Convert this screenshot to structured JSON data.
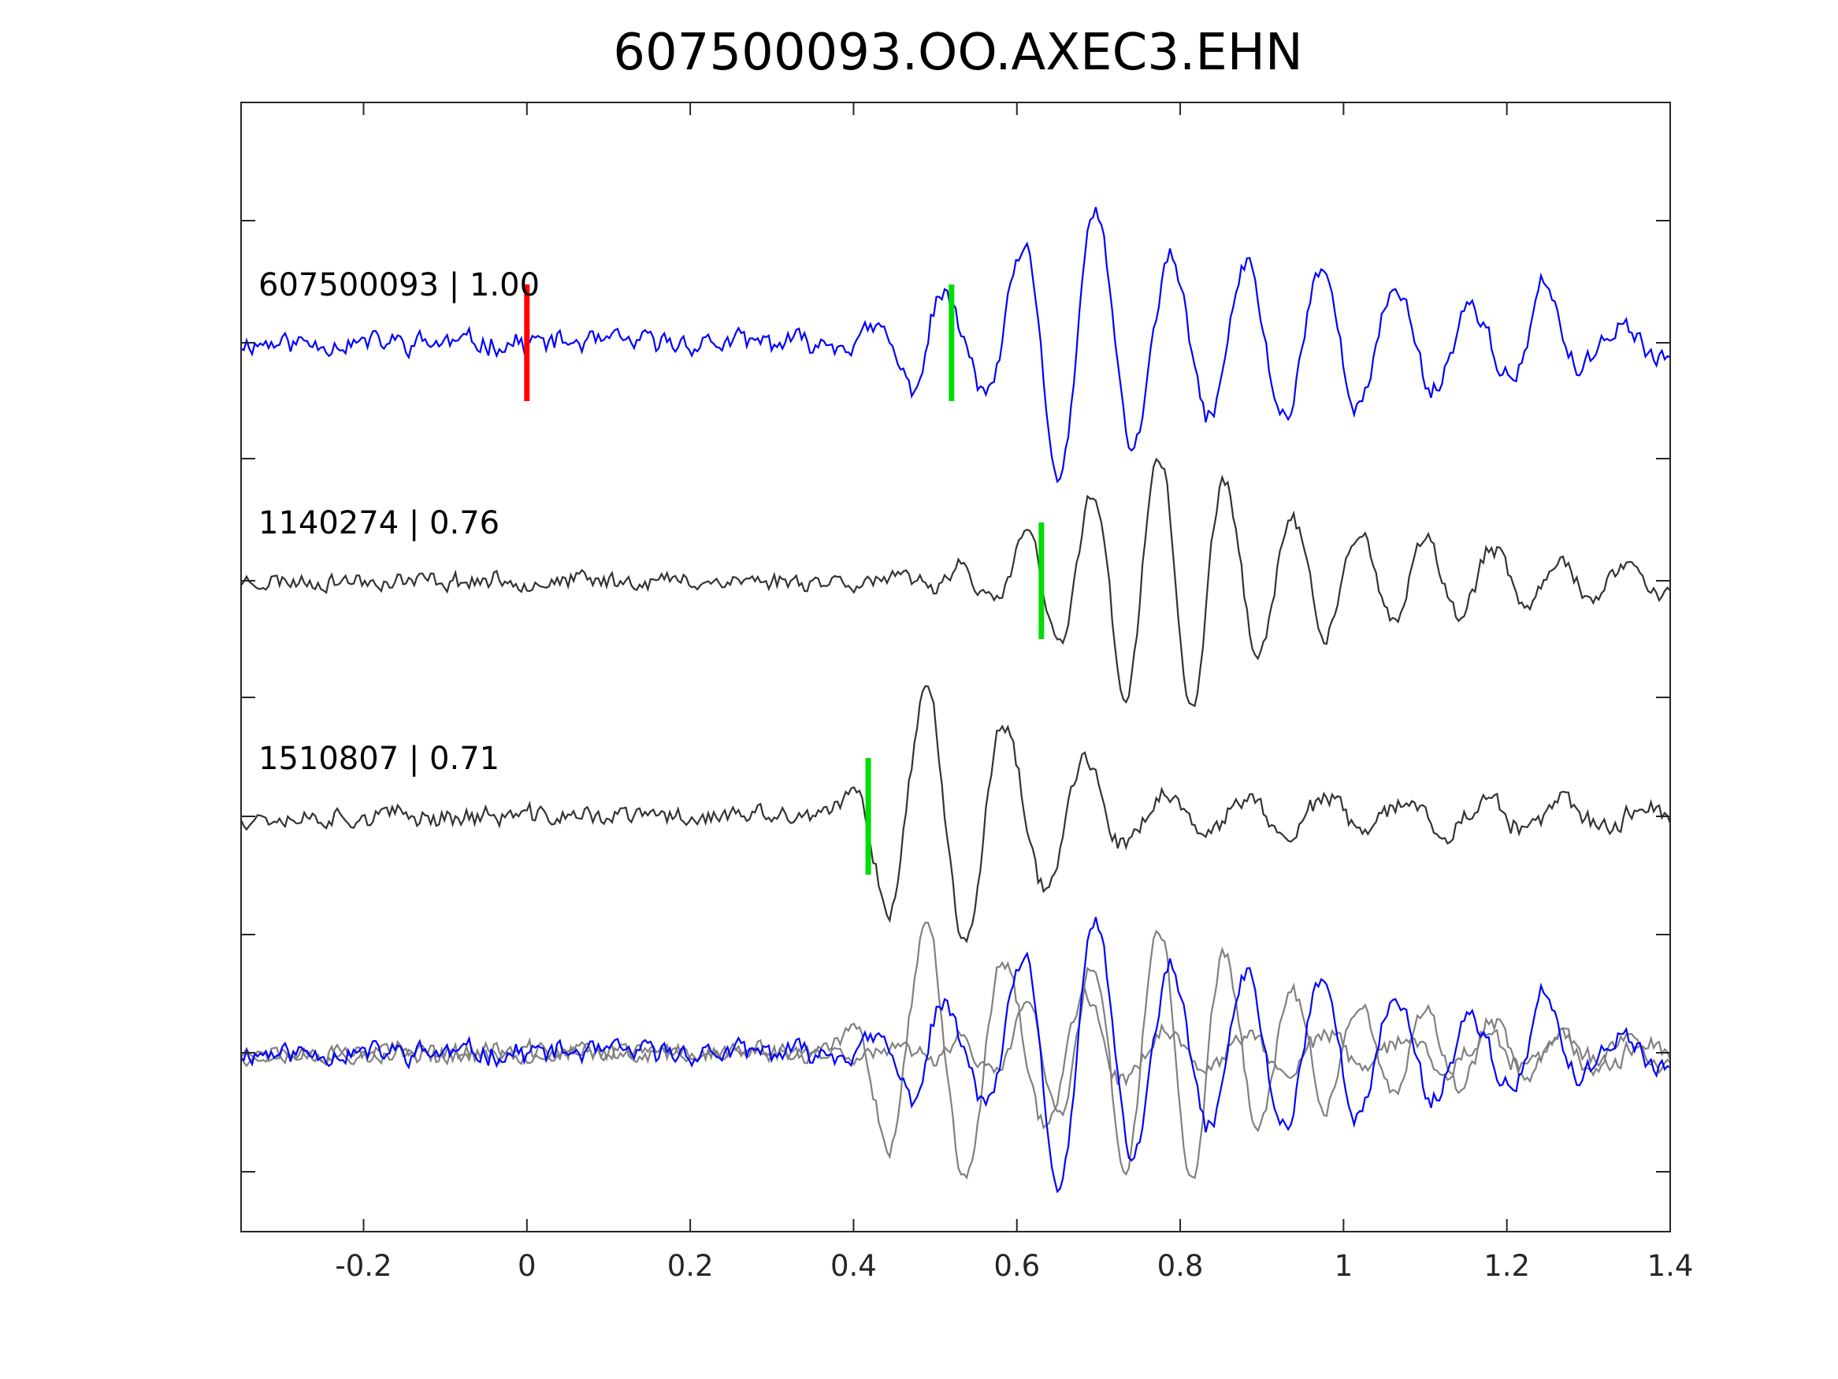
{
  "chart_data": {
    "type": "line",
    "title": "607500093.OO.AXEC3.EHN",
    "xlabel": "",
    "ylabel": "",
    "xlim": [
      -0.35,
      1.4
    ],
    "xticks": [
      -0.2,
      0,
      0.2,
      0.4,
      0.6,
      0.8,
      1,
      1.2,
      1.4
    ],
    "xtick_labels": [
      "-0.2",
      "0",
      "0.2",
      "0.4",
      "0.6",
      "0.8",
      "1",
      "1.2",
      "1.4"
    ],
    "yticks_labeled": false,
    "grid": false,
    "box": true,
    "colors": {
      "master_trace": "#0000ff",
      "neighbor_trace": "#333333",
      "overlay_neighbor_trace": "#808080",
      "origin_marker": "#ff0000",
      "pick_marker": "#00dd00"
    },
    "traces": [
      {
        "label": "607500093 | 1.00",
        "event_id": "607500093",
        "correlation": 1.0,
        "color": "#0000ff",
        "origin_marker_time": 0.0,
        "pick_time": 0.52,
        "envelope": [
          [
            0.45,
            0.2
          ],
          [
            0.49,
            0.5
          ],
          [
            0.53,
            0.25
          ],
          [
            0.57,
            0.42
          ],
          [
            0.6,
            0.65
          ],
          [
            0.64,
            1.0
          ],
          [
            0.7,
            1.0
          ],
          [
            0.76,
            0.7
          ],
          [
            0.8,
            0.6
          ],
          [
            0.84,
            0.55
          ],
          [
            0.88,
            0.6
          ],
          [
            0.92,
            0.55
          ],
          [
            0.96,
            0.6
          ],
          [
            1.0,
            0.5
          ],
          [
            1.08,
            0.4
          ],
          [
            1.14,
            0.3
          ],
          [
            1.2,
            0.25
          ],
          [
            1.24,
            0.48
          ],
          [
            1.3,
            0.18
          ],
          [
            1.4,
            0.12
          ]
        ],
        "period": 0.092,
        "phase": 0.628,
        "noise_level": 0.13,
        "seed": 11
      },
      {
        "label": "1140274 | 0.76",
        "event_id": "1140274",
        "correlation": 0.76,
        "color": "#333333",
        "pick_time": 0.63,
        "envelope": [
          [
            0.52,
            0.12
          ],
          [
            0.58,
            0.2
          ],
          [
            0.62,
            0.45
          ],
          [
            0.66,
            0.55
          ],
          [
            0.7,
            0.75
          ],
          [
            0.75,
            1.0
          ],
          [
            0.83,
            1.0
          ],
          [
            0.88,
            0.6
          ],
          [
            0.92,
            0.55
          ],
          [
            0.96,
            0.45
          ],
          [
            1.02,
            0.4
          ],
          [
            1.1,
            0.3
          ],
          [
            1.16,
            0.28
          ],
          [
            1.22,
            0.22
          ],
          [
            1.3,
            0.18
          ],
          [
            1.4,
            0.12
          ]
        ],
        "period": 0.082,
        "phase": 0.63,
        "noise_level": 0.11,
        "seed": 23
      },
      {
        "label": "1510807 | 0.71",
        "event_id": "1510807",
        "correlation": 0.71,
        "color": "#333333",
        "pick_time": 0.418,
        "envelope": [
          [
            0.39,
            0.12
          ],
          [
            0.42,
            0.45
          ],
          [
            0.45,
            0.8
          ],
          [
            0.49,
            1.0
          ],
          [
            0.53,
            0.95
          ],
          [
            0.58,
            0.75
          ],
          [
            0.63,
            0.55
          ],
          [
            0.68,
            0.45
          ],
          [
            0.72,
            0.25
          ],
          [
            0.78,
            0.18
          ],
          [
            0.85,
            0.2
          ],
          [
            0.9,
            0.15
          ],
          [
            1.0,
            0.13
          ],
          [
            1.1,
            0.12
          ],
          [
            1.4,
            0.1
          ]
        ],
        "period": 0.098,
        "phase": 0.415,
        "noise_level": 0.12,
        "seed": 37
      }
    ],
    "overlay": {
      "description_label": "",
      "contains": [
        "1140274",
        "1510807",
        "607500093"
      ]
    }
  }
}
